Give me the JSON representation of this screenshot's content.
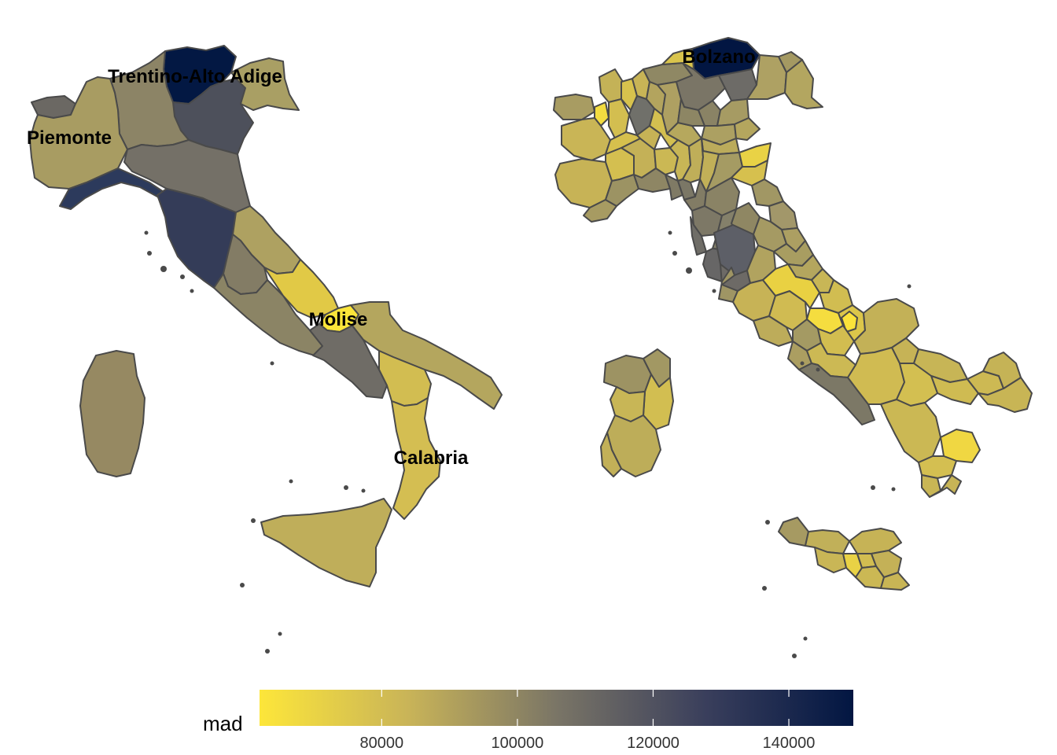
{
  "colors": {
    "low": "#fde63a",
    "mid": "#7a7566",
    "high": "#021642",
    "border": "#4a4a4a"
  },
  "maps": [
    {
      "name": "regions",
      "labels": [
        {
          "text": "Trentino-Alto Adige"
        },
        {
          "text": "Piemonte"
        },
        {
          "text": "Molise"
        },
        {
          "text": "Calabria"
        }
      ]
    },
    {
      "name": "provinces",
      "labels": [
        {
          "text": "Bolzano"
        }
      ]
    }
  ],
  "legend": {
    "title": "mad",
    "min": 62000,
    "max": 149500,
    "ticks": [
      {
        "value": 80000,
        "label": "80000"
      },
      {
        "value": 100000,
        "label": "100000"
      },
      {
        "value": 120000,
        "label": "120000"
      },
      {
        "value": 140000,
        "label": "140000"
      }
    ]
  }
}
